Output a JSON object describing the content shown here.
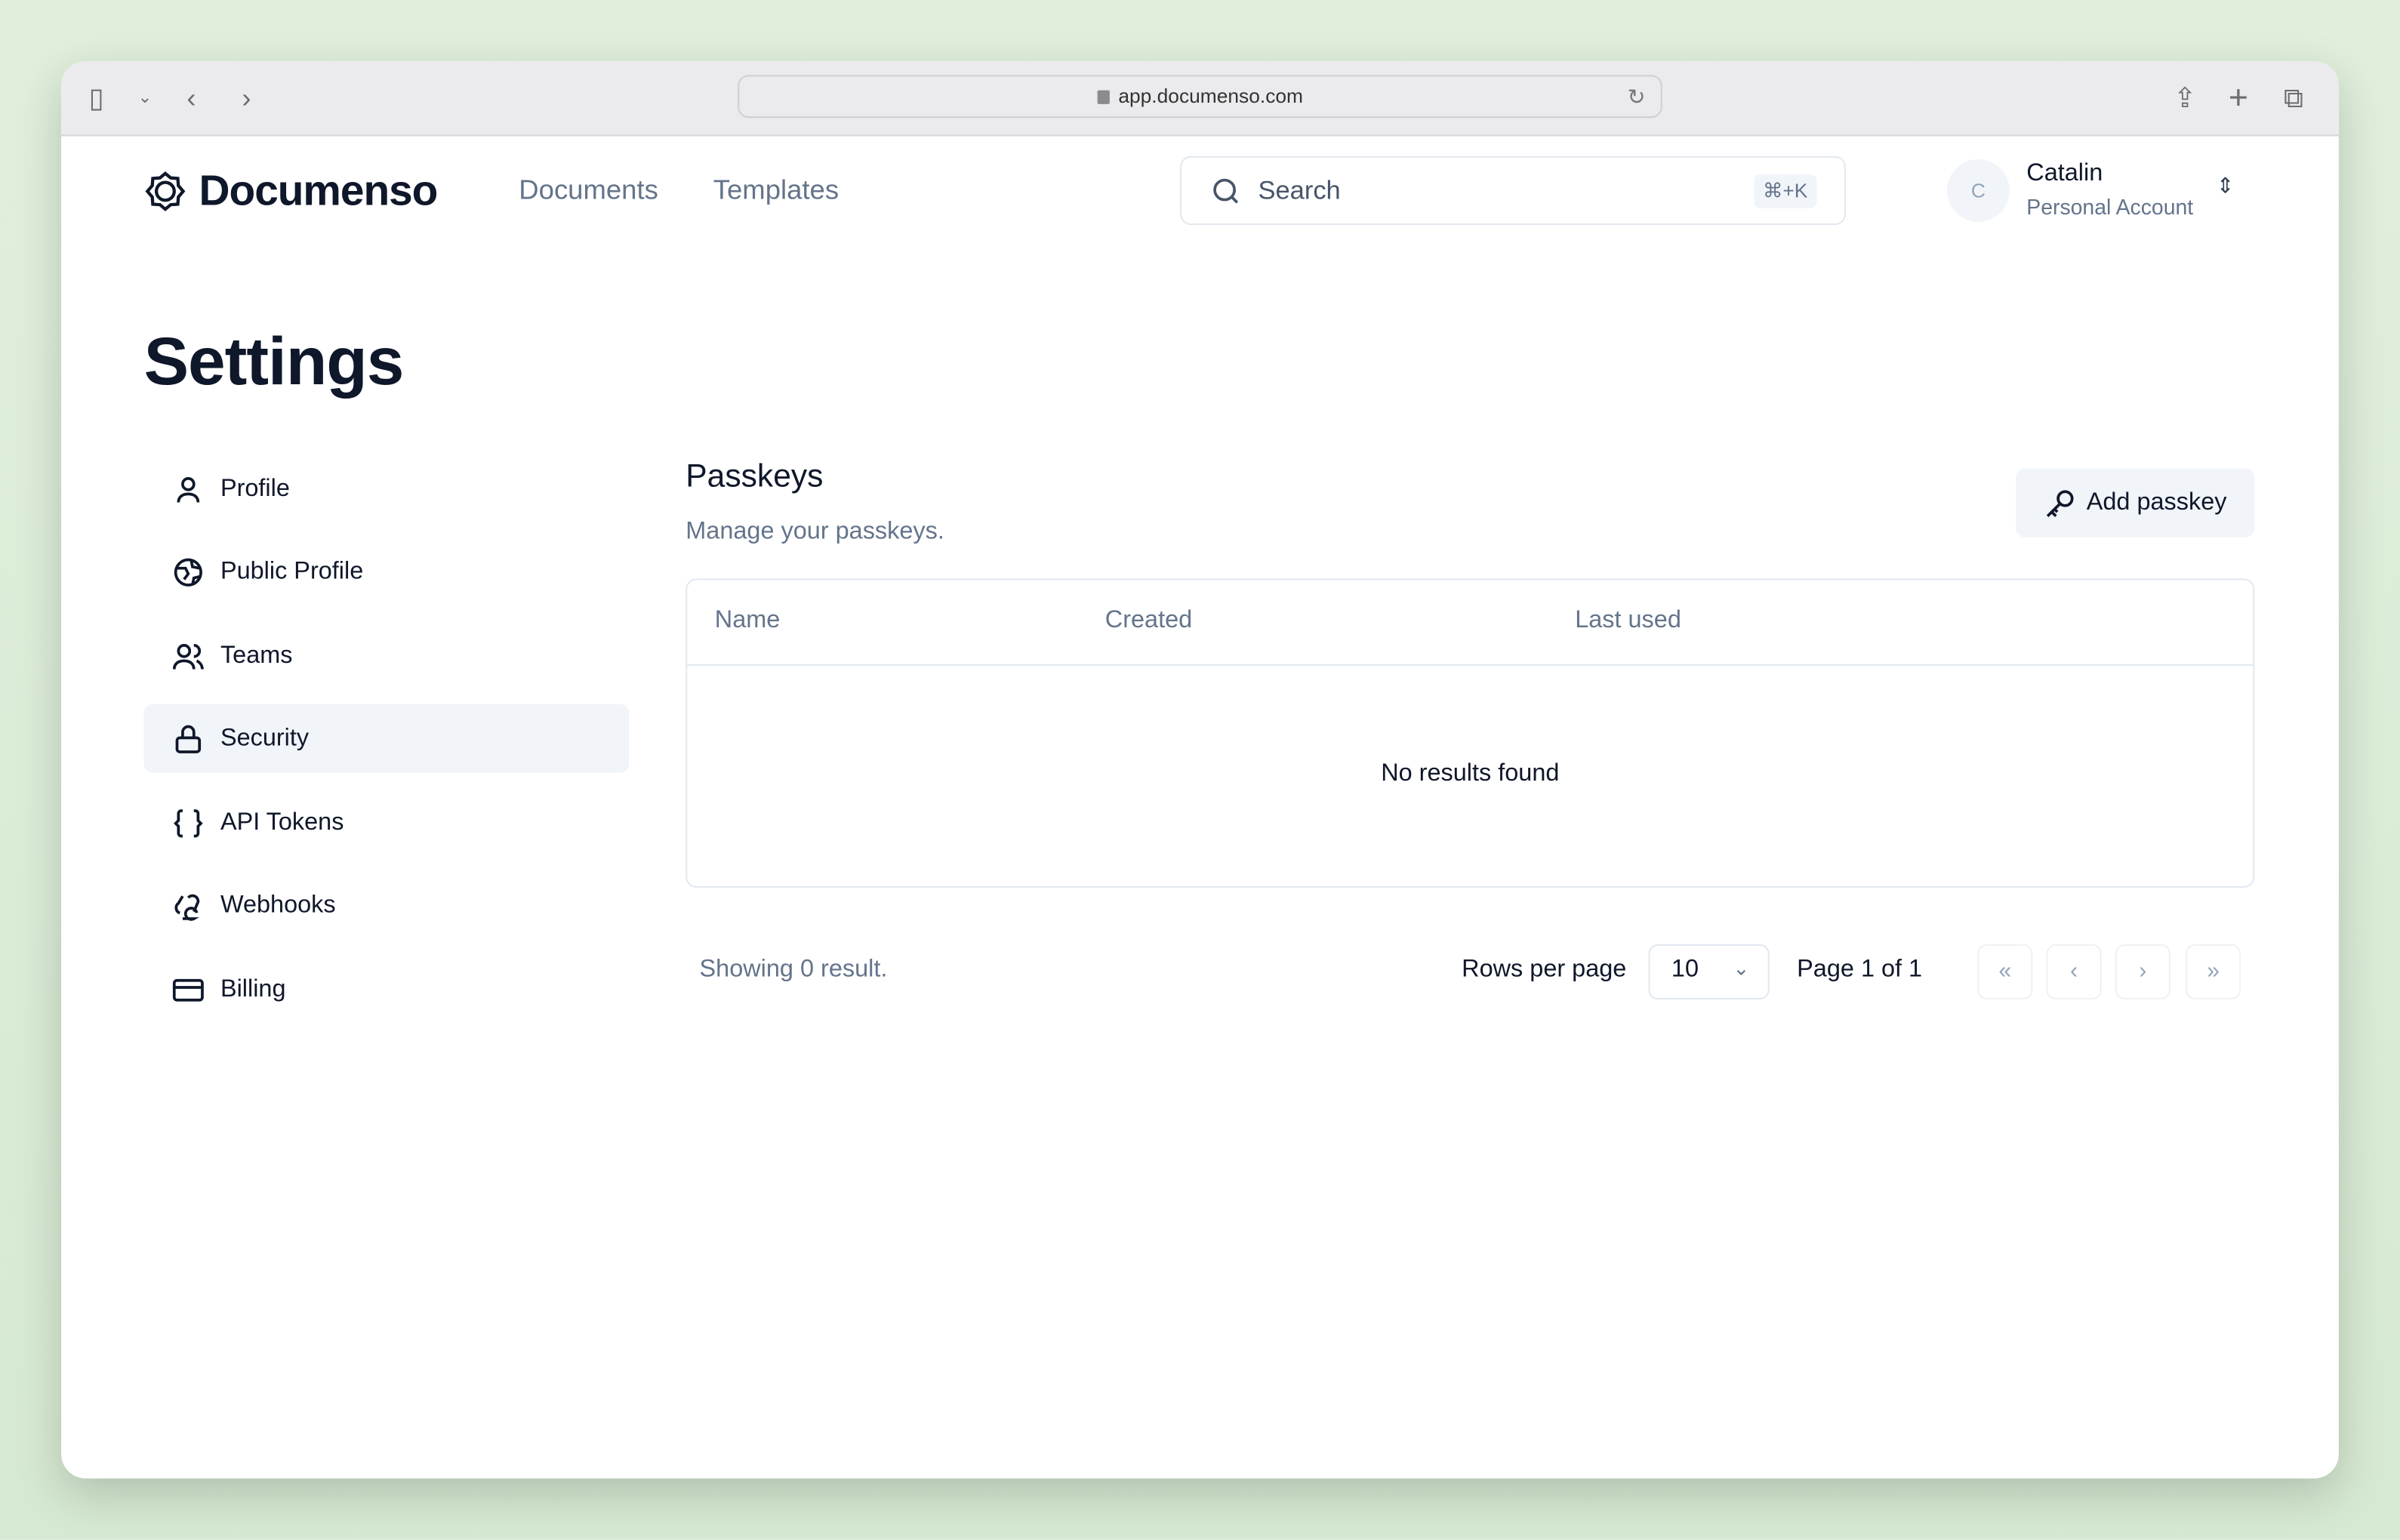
{
  "browser": {
    "url": "app.documenso.com"
  },
  "header": {
    "logo": "Documenso",
    "nav": [
      "Documents",
      "Templates"
    ],
    "search_placeholder": "Search",
    "search_shortcut": "⌘+K",
    "user": {
      "initial": "C",
      "name": "Catalin",
      "account": "Personal Account"
    }
  },
  "page": {
    "title": "Settings"
  },
  "sidebar": {
    "items": [
      {
        "label": "Profile",
        "icon": "user-icon"
      },
      {
        "label": "Public Profile",
        "icon": "globe-icon"
      },
      {
        "label": "Teams",
        "icon": "users-icon"
      },
      {
        "label": "Security",
        "icon": "lock-icon",
        "active": true
      },
      {
        "label": "API Tokens",
        "icon": "braces-icon"
      },
      {
        "label": "Webhooks",
        "icon": "webhook-icon"
      },
      {
        "label": "Billing",
        "icon": "credit-card-icon"
      }
    ]
  },
  "main": {
    "title": "Passkeys",
    "subtitle": "Manage your passkeys.",
    "add_button": "Add passkey",
    "table": {
      "columns": [
        "Name",
        "Created",
        "Last used"
      ],
      "empty": "No results found"
    },
    "footer": {
      "showing": "Showing 0 result.",
      "rows_per_page_label": "Rows per page",
      "rows_per_page": "10",
      "page": "Page 1 of 1"
    }
  },
  "colors": {
    "active_bg": "#f1f5f9",
    "muted_text": "#64748b",
    "background": "#e0efdc"
  }
}
